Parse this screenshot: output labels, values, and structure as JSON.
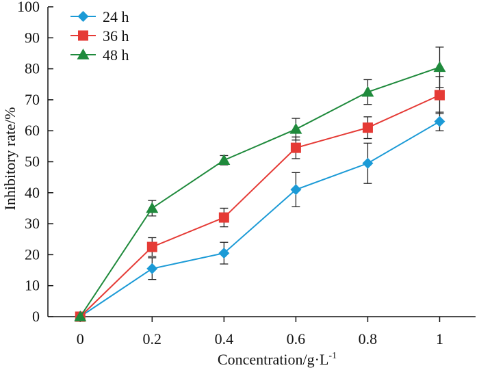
{
  "chart_data": {
    "type": "line",
    "title": "",
    "xlabel": "Concentration/g·L",
    "xlabel_superscript": "-1",
    "ylabel": "Inhibitory rate/%",
    "xlim": [
      -0.09,
      1.1
    ],
    "ylim": [
      0,
      100
    ],
    "x": [
      0,
      0.2,
      0.4,
      0.6,
      0.8,
      1
    ],
    "x_tick_labels": [
      "0",
      "0.2",
      "0.4",
      "0.6",
      "0.8",
      "1"
    ],
    "y_ticks": [
      0,
      10,
      20,
      30,
      40,
      50,
      60,
      70,
      80,
      90,
      100
    ],
    "y_tick_labels": [
      "0",
      "10",
      "20",
      "30",
      "40",
      "50",
      "60",
      "70",
      "80",
      "90",
      "100"
    ],
    "legend_position": "top-left",
    "series": [
      {
        "name": "24 h",
        "color": "#1b9ad6",
        "marker": "diamond",
        "values": [
          0,
          15.5,
          20.5,
          41,
          49.5,
          63
        ],
        "errors": [
          0,
          3.5,
          3.5,
          5.5,
          6.5,
          3
        ]
      },
      {
        "name": "36 h",
        "color": "#e53a35",
        "marker": "square",
        "values": [
          0,
          22.5,
          32,
          54.5,
          61,
          71.5
        ],
        "errors": [
          0,
          3,
          3,
          3.5,
          3.5,
          6
        ]
      },
      {
        "name": "48 h",
        "color": "#1f8a3c",
        "marker": "triangle",
        "values": [
          0,
          35,
          50.5,
          60.5,
          72.5,
          80.5
        ],
        "errors": [
          0,
          2.5,
          1.5,
          3.5,
          4,
          6.5
        ]
      }
    ]
  }
}
